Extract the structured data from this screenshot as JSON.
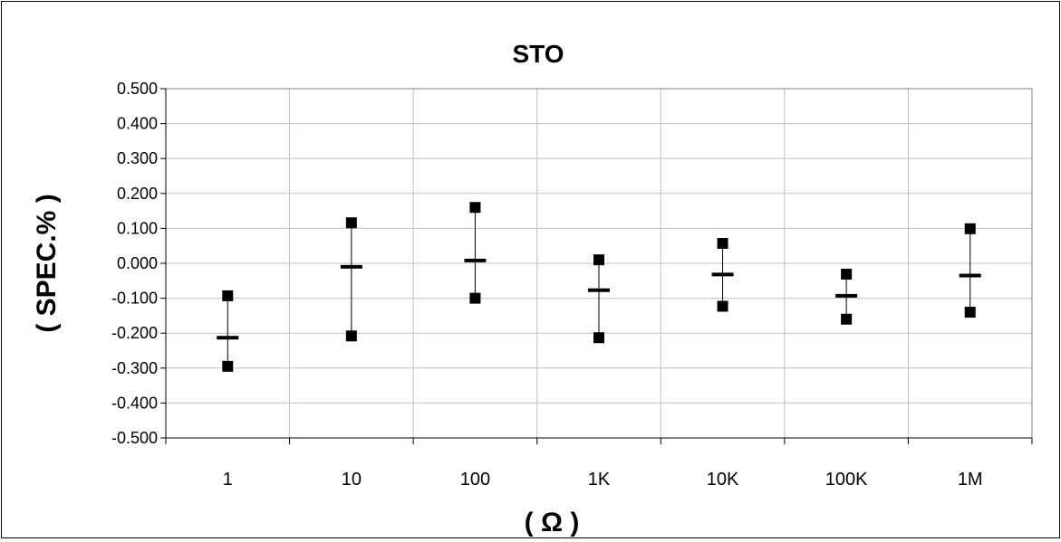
{
  "chart_data": {
    "type": "scatter",
    "title": "STO",
    "xlabel": "( Ω )",
    "ylabel": "( SPEC.% )",
    "categories": [
      "1",
      "10",
      "100",
      "1K",
      "10K",
      "100K",
      "1M"
    ],
    "ylim": [
      -0.5,
      0.5
    ],
    "yticks": [
      "0.500",
      "0.400",
      "0.300",
      "0.200",
      "0.100",
      "0.000",
      "-0.100",
      "-0.200",
      "-0.300",
      "-0.400",
      "-0.500"
    ],
    "grid": true,
    "series": [
      {
        "marker": "square",
        "values": [
          -0.093,
          0.116,
          0.16,
          0.01,
          0.057,
          -0.031,
          0.099
        ]
      },
      {
        "marker": "square",
        "values": [
          -0.295,
          -0.208,
          -0.1,
          -0.213,
          -0.123,
          -0.16,
          -0.14
        ]
      },
      {
        "marker": "dash",
        "values": [
          -0.213,
          -0.01,
          0.008,
          -0.077,
          -0.032,
          -0.093,
          -0.035
        ]
      }
    ]
  }
}
